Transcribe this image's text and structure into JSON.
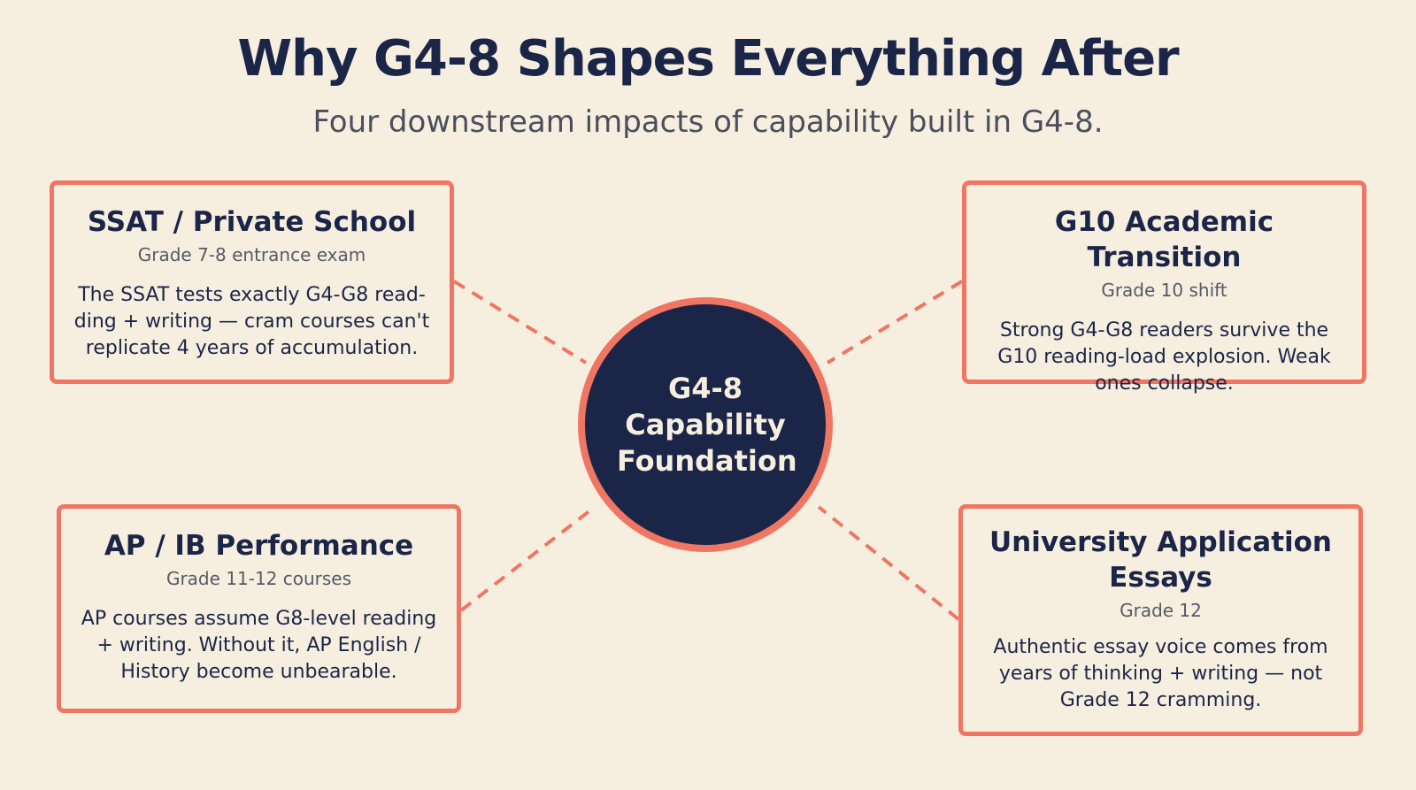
{
  "header": {
    "title": "Why G4-8 Shapes Everything After",
    "subtitle": "Four downstream impacts of capability built in G4-8."
  },
  "hub": {
    "label": "G4-8\nCapability\nFoundation"
  },
  "cards": {
    "ssat": {
      "title": "SSAT / Private School",
      "subtitle": "Grade 7-8 entrance exam",
      "description": "The SSAT tests exactly G4-G8 read-ding + writing — cram courses can't replicate 4 years of accumulation."
    },
    "g10": {
      "title": "G10 Academic Transition",
      "subtitle": "Grade 10 shift",
      "description": "Strong G4-G8 readers survive the G10 reading-load explosion. Weak ones collapse."
    },
    "ap": {
      "title": "AP / IB Performance",
      "subtitle": "Grade 11-12 courses",
      "description": "AP courses assume G8-level reading + writing. Without it, AP English / History become unbearable."
    },
    "uni": {
      "title": "University Application Essays",
      "subtitle": "Grade 12",
      "description": "Authentic essay voice comes from years of thinking + writing — not Grade 12 cramming."
    }
  },
  "colors": {
    "background": "#f6efe0",
    "navy": "#1b2547",
    "accent": "#ef7662"
  }
}
